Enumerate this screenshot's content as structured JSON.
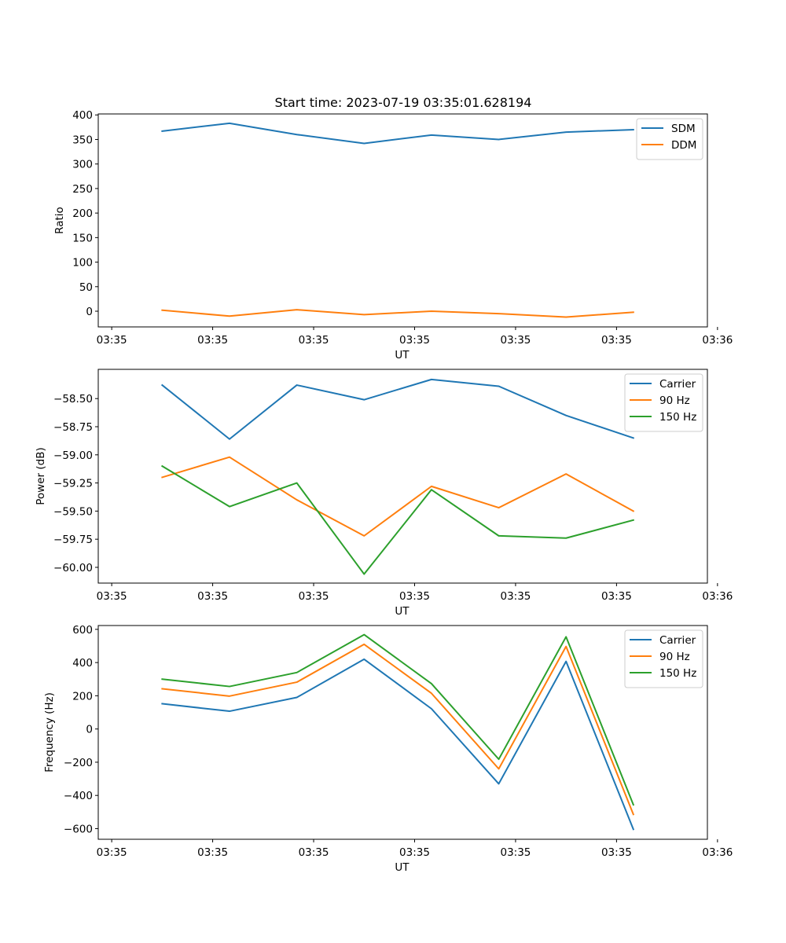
{
  "figure": {
    "title": "Start time: 2023-07-19 03:35:01.628194"
  },
  "chart_data": [
    {
      "type": "line",
      "ylabel": "Ratio",
      "xlabel": "UT",
      "xlim": [
        -0.45,
        8.6
      ],
      "ylim": [
        -32,
        402
      ],
      "yticks": [
        0,
        50,
        100,
        150,
        200,
        250,
        300,
        350,
        400
      ],
      "ytick_labels": [
        "0",
        "50",
        "100",
        "150",
        "200",
        "250",
        "300",
        "350",
        "400"
      ],
      "xticks": [
        -0.25,
        1.25,
        2.75,
        4.25,
        5.75,
        7.25,
        8.75
      ],
      "xtick_labels": [
        "03:35",
        "03:35",
        "03:35",
        "03:35",
        "03:35",
        "03:35",
        "03:36"
      ],
      "x": [
        0.5,
        1.5,
        2.5,
        3.5,
        4.5,
        5.5,
        6.5,
        7.5
      ],
      "legend_position": "upper-right",
      "series": [
        {
          "name": "SDM",
          "color": "#1f77b4",
          "values": [
            367,
            383,
            360,
            342,
            359,
            350,
            365,
            370
          ]
        },
        {
          "name": "DDM",
          "color": "#ff7f0e",
          "values": [
            2,
            -10,
            3,
            -7,
            0,
            -5,
            -12,
            -2
          ]
        }
      ]
    },
    {
      "type": "line",
      "ylabel": "Power (dB)",
      "xlabel": "UT",
      "xlim": [
        -0.45,
        8.6
      ],
      "ylim": [
        -60.14,
        -58.24
      ],
      "yticks": [
        -60.0,
        -59.75,
        -59.5,
        -59.25,
        -59.0,
        -58.75,
        -58.5
      ],
      "ytick_labels": [
        "−60.00",
        "−59.75",
        "−59.50",
        "−59.25",
        "−59.00",
        "−58.75",
        "−58.50"
      ],
      "xticks": [
        -0.25,
        1.25,
        2.75,
        4.25,
        5.75,
        7.25,
        8.75
      ],
      "xtick_labels": [
        "03:35",
        "03:35",
        "03:35",
        "03:35",
        "03:35",
        "03:35",
        "03:36"
      ],
      "x": [
        0.5,
        1.5,
        2.5,
        3.5,
        4.5,
        5.5,
        6.5,
        7.5
      ],
      "legend_position": "upper-right",
      "series": [
        {
          "name": "Carrier",
          "color": "#1f77b4",
          "values": [
            -58.38,
            -58.86,
            -58.38,
            -58.51,
            -58.33,
            -58.39,
            -58.65,
            -58.85
          ]
        },
        {
          "name": "90 Hz",
          "color": "#ff7f0e",
          "values": [
            -59.2,
            -59.02,
            -59.4,
            -59.72,
            -59.28,
            -59.47,
            -59.17,
            -59.5
          ]
        },
        {
          "name": "150 Hz",
          "color": "#2ca02c",
          "values": [
            -59.1,
            -59.46,
            -59.25,
            -60.06,
            -59.31,
            -59.72,
            -59.74,
            -59.58
          ]
        }
      ]
    },
    {
      "type": "line",
      "ylabel": "Frequency (Hz)",
      "xlabel": "UT",
      "xlim": [
        -0.45,
        8.6
      ],
      "ylim": [
        -664,
        623
      ],
      "yticks": [
        -600,
        -400,
        -200,
        0,
        200,
        400,
        600
      ],
      "ytick_labels": [
        "−600",
        "−400",
        "−200",
        "0",
        "200",
        "400",
        "600"
      ],
      "xticks": [
        -0.25,
        1.25,
        2.75,
        4.25,
        5.75,
        7.25,
        8.75
      ],
      "xtick_labels": [
        "03:35",
        "03:35",
        "03:35",
        "03:35",
        "03:35",
        "03:35",
        "03:36"
      ],
      "x": [
        0.5,
        1.5,
        2.5,
        3.5,
        4.5,
        5.5,
        6.5,
        7.5
      ],
      "legend_position": "upper-right",
      "series": [
        {
          "name": "Carrier",
          "color": "#1f77b4",
          "values": [
            152,
            107,
            190,
            420,
            122,
            -330,
            407,
            -604
          ]
        },
        {
          "name": "90 Hz",
          "color": "#ff7f0e",
          "values": [
            242,
            198,
            282,
            510,
            215,
            -240,
            497,
            -514
          ]
        },
        {
          "name": "150 Hz",
          "color": "#2ca02c",
          "values": [
            300,
            256,
            340,
            568,
            273,
            -182,
            555,
            -456
          ]
        }
      ]
    }
  ]
}
